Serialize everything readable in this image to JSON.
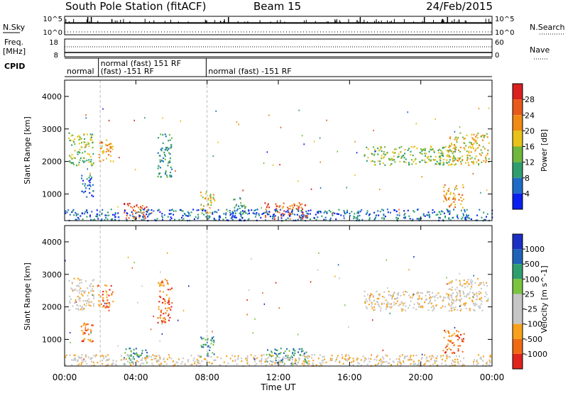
{
  "header": {
    "station": "South Pole Station (fitACF)",
    "beam": "Beam 15",
    "date": "24/Feb/2015"
  },
  "side_labels": {
    "nsky": "N.Sky",
    "nsky_ticks": [
      "10^5",
      "10^0"
    ],
    "nsearch": "N.Search",
    "nsearch_ticks": [
      "10^5",
      "10^0"
    ],
    "freq_line1": "Freq.",
    "freq_line2": "[MHz]",
    "freq_ticks": [
      "18",
      "8"
    ],
    "nave": "Nave",
    "nave_ticks": [
      "60",
      "0"
    ],
    "cpid": "CPID"
  },
  "cpid_segments": [
    {
      "start": 0.0,
      "end": 1.9,
      "label": "normal"
    },
    {
      "start": 1.9,
      "end": 7.95,
      "label": "normal (fast) 151 RF",
      "label2": "(fast) -151 RF"
    },
    {
      "start": 7.95,
      "end": 24.0,
      "label": "normal (fast) -151 RF"
    }
  ],
  "axes": {
    "ylabel": "Slant Range [km]",
    "y_ticks": [
      "1000",
      "2000",
      "3000",
      "4000"
    ],
    "xlabel": "Time UT",
    "x_ticks": [
      "00:00",
      "04:00",
      "08:00",
      "12:00",
      "16:00",
      "20:00",
      "00:00"
    ]
  },
  "colors": {
    "power": [
      "#0b1ef0",
      "#1e6bc8",
      "#2f9e6e",
      "#6fb83d",
      "#e8c21a",
      "#f08a13",
      "#e8591a",
      "#d91f1f"
    ],
    "velocity": [
      "#e0231c",
      "#f06a14",
      "#f7a21a",
      "#c6c6c6",
      "#c6c6c6",
      "#7bc442",
      "#2f9e6e",
      "#1f62b8",
      "#1b2ec4"
    ]
  },
  "chart_data": [
    {
      "type": "line",
      "name": "N.Sky",
      "x_range": [
        0,
        24
      ],
      "y_scale": "log",
      "y_range_exponent": [
        0,
        5
      ],
      "noise_level_exponent": 3.2,
      "spikes_at": [
        1.3,
        1.5,
        9.2,
        16.6,
        20.2,
        21.5
      ]
    },
    {
      "type": "line",
      "name": "Freq.",
      "unit": "MHz",
      "y_range": [
        8,
        18
      ],
      "frequency_mhz": 10.4,
      "x_range": [
        0,
        24
      ]
    },
    {
      "type": "heatmap",
      "title": "Power",
      "colorbar_label": "Power [dB]",
      "colorbar_ticks": [
        "4",
        "8",
        "12",
        "16",
        "20",
        "24",
        "28"
      ],
      "x_range": [
        0,
        24
      ],
      "y_range": [
        180,
        4500
      ],
      "regions": [
        {
          "t0": 0.2,
          "t1": 1.6,
          "r0": 1900,
          "r1": 2900,
          "level": 3
        },
        {
          "t0": 1.8,
          "t1": 2.7,
          "r0": 2000,
          "r1": 2700,
          "level": 5
        },
        {
          "t0": 0.9,
          "t1": 1.6,
          "r0": 900,
          "r1": 1600,
          "level": 1
        },
        {
          "t0": 3.3,
          "t1": 4.6,
          "r0": 250,
          "r1": 750,
          "level": 6
        },
        {
          "t0": 5.2,
          "t1": 6.0,
          "r0": 1500,
          "r1": 2900,
          "level": 2
        },
        {
          "t0": 7.6,
          "t1": 8.4,
          "r0": 400,
          "r1": 1100,
          "level": 4
        },
        {
          "t0": 9.4,
          "t1": 10.2,
          "r0": 400,
          "r1": 900,
          "level": 2
        },
        {
          "t0": 11.2,
          "t1": 13.6,
          "r0": 250,
          "r1": 750,
          "level": 6
        },
        {
          "t0": 16.8,
          "t1": 22.0,
          "r0": 1900,
          "r1": 2500,
          "level": 3
        },
        {
          "t0": 21.5,
          "t1": 23.8,
          "r0": 1900,
          "r1": 2900,
          "level": 4
        },
        {
          "t0": 21.2,
          "t1": 22.4,
          "r0": 600,
          "r1": 1300,
          "level": 5
        },
        {
          "t0": 0.0,
          "t1": 24.0,
          "r0": 200,
          "r1": 550,
          "level": 1
        }
      ]
    },
    {
      "type": "heatmap",
      "title": "Velocity",
      "colorbar_label": "Velocity [m s^-1]",
      "colorbar_ticks": [
        "1000",
        "500",
        "100",
        "25",
        "-25",
        "-100",
        "-500",
        "-1000"
      ],
      "x_range": [
        0,
        24
      ],
      "y_range": [
        180,
        4500
      ],
      "regions": [
        {
          "t0": 0.2,
          "t1": 1.6,
          "r0": 1900,
          "r1": 2900,
          "level": 3
        },
        {
          "t0": 1.8,
          "t1": 2.7,
          "r0": 2000,
          "r1": 2700,
          "level": 1
        },
        {
          "t0": 0.9,
          "t1": 1.6,
          "r0": 900,
          "r1": 1600,
          "level": 1
        },
        {
          "t0": 3.3,
          "t1": 4.6,
          "r0": 250,
          "r1": 750,
          "level": 6
        },
        {
          "t0": 5.2,
          "t1": 6.0,
          "r0": 1500,
          "r1": 2900,
          "level": 1
        },
        {
          "t0": 7.6,
          "t1": 8.4,
          "r0": 400,
          "r1": 1100,
          "level": 6
        },
        {
          "t0": 11.2,
          "t1": 13.6,
          "r0": 250,
          "r1": 750,
          "level": 6
        },
        {
          "t0": 16.8,
          "t1": 22.0,
          "r0": 1900,
          "r1": 2500,
          "level": 3
        },
        {
          "t0": 21.5,
          "t1": 23.8,
          "r0": 1900,
          "r1": 2900,
          "level": 3
        },
        {
          "t0": 21.2,
          "t1": 22.4,
          "r0": 600,
          "r1": 1300,
          "level": 1
        },
        {
          "t0": 0.0,
          "t1": 24.0,
          "r0": 200,
          "r1": 550,
          "level": 3
        }
      ]
    }
  ]
}
